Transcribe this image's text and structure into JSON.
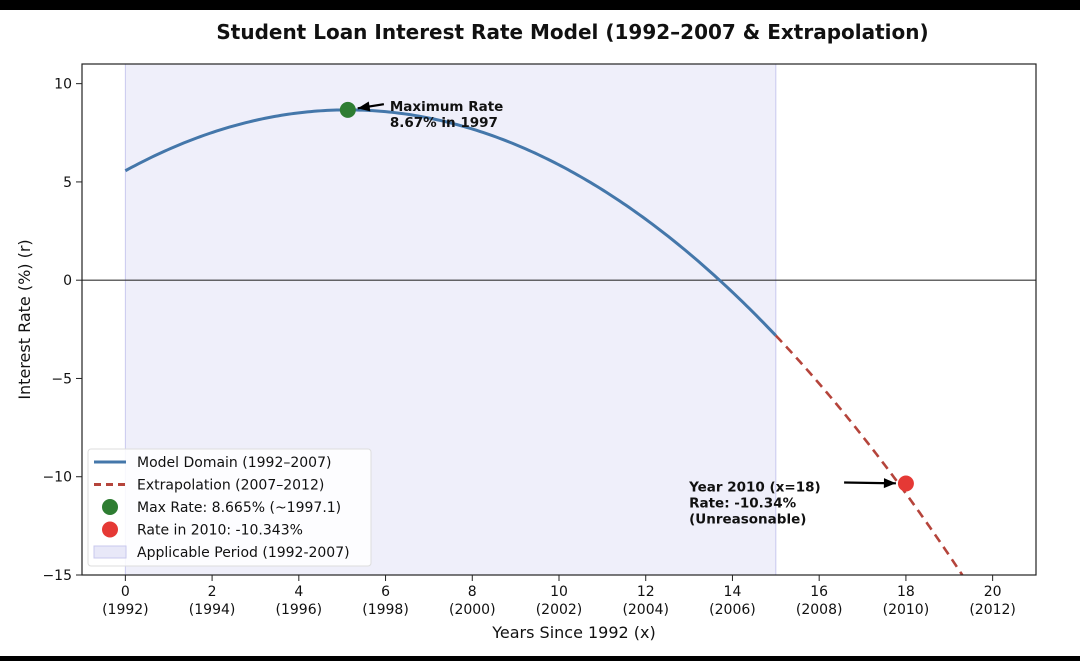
{
  "title": "Student Loan Interest Rate Model (1992–2007 & Extrapolation)",
  "chart_data": {
    "type": "line",
    "title": "Student Loan Interest Rate Model (1992–2007 & Extrapolation)",
    "xlabel": "Years Since 1992 (x)",
    "ylabel": "Interest Rate (%) (r)",
    "xlim": [
      -1,
      21
    ],
    "ylim": [
      -15,
      11
    ],
    "x_ticks": [
      0,
      2,
      4,
      6,
      8,
      10,
      12,
      14,
      16,
      18,
      20
    ],
    "x_tick_years": [
      "(1992)",
      "(1994)",
      "(1996)",
      "(1998)",
      "(2000)",
      "(2002)",
      "(2004)",
      "(2006)",
      "(2008)",
      "(2010)",
      "(2012)"
    ],
    "y_ticks": [
      10,
      5,
      0,
      -5,
      -10,
      -15
    ],
    "y_tick_labels": [
      "10",
      "5",
      "0",
      "−5",
      "−10",
      "−15"
    ],
    "model": {
      "a": -0.1178,
      "b": 1.2079,
      "c": 5.5684
    },
    "series": [
      {
        "name": "Model Domain (1992–2007)",
        "style": "solid",
        "color": "#4477aa",
        "x_range": [
          0,
          15
        ]
      },
      {
        "name": "Extrapolation (2007–2012)",
        "style": "dashed",
        "color": "#b5443b",
        "x_range": [
          15,
          20
        ]
      }
    ],
    "points": [
      {
        "name": "Max Rate: 8.665% (~1997.1)",
        "x": 5.13,
        "y": 8.665,
        "color": "#2e7d32"
      },
      {
        "name": "Rate in 2010: -10.343%",
        "x": 18,
        "y": -10.343,
        "color": "#e53935"
      }
    ],
    "shaded_region": {
      "name": "Applicable Period (1992-2007)",
      "x_range": [
        0,
        15
      ],
      "color": "#e8e8f8"
    },
    "hline_y": 0,
    "annotations": [
      {
        "lines": [
          "Maximum Rate",
          "8.67% in 1997"
        ],
        "target": [
          5.13,
          8.665
        ],
        "text_at": [
          6.1,
          8.6
        ]
      },
      {
        "lines": [
          "Year 2010 (x=18)",
          "Rate: -10.34%",
          "(Unreasonable)"
        ],
        "target": [
          18,
          -10.343
        ],
        "text_at": [
          13.0,
          -10.75
        ]
      }
    ],
    "legend_position": "lower-left",
    "grid": false
  }
}
